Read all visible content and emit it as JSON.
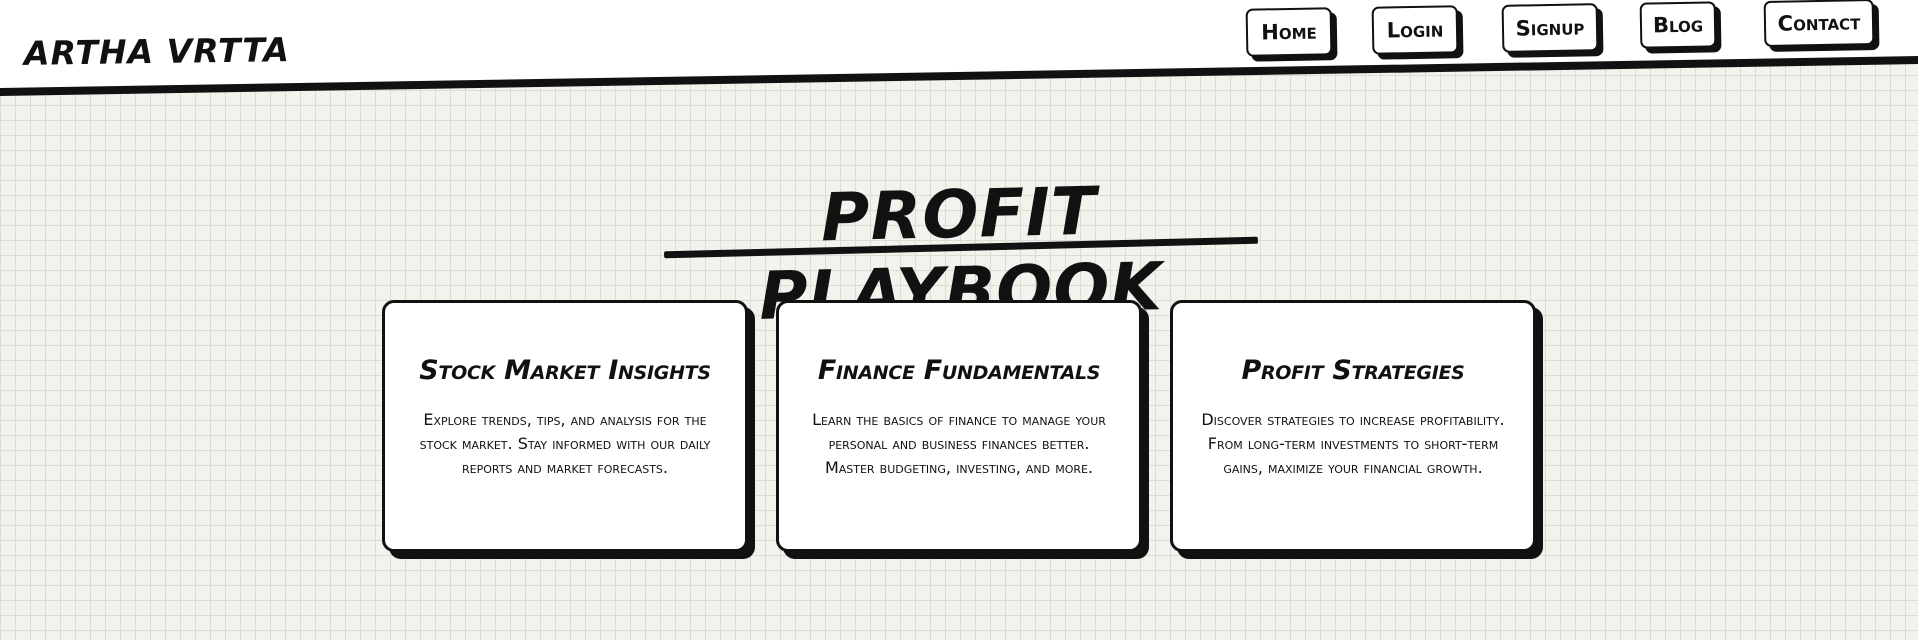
{
  "header": {
    "brand": "ARTHA VRTTA",
    "nav": [
      {
        "label": "Home"
      },
      {
        "label": "Login"
      },
      {
        "label": "Signup"
      },
      {
        "label": "Blog"
      },
      {
        "label": "Contact"
      }
    ]
  },
  "main": {
    "title": "PROFIT PLAYBOOK",
    "cards": [
      {
        "title": "Stock Market Insights",
        "text": "Explore trends, tips, and analysis for the stock market. Stay informed with our daily reports and market forecasts."
      },
      {
        "title": "Finance Fundamentals",
        "text": "Learn the basics of finance to manage your personal and business finances better. Master budgeting, investing, and more."
      },
      {
        "title": "Profit Strategies",
        "text": "Discover strategies to increase profitability. From long-term investments to short-term gains, maximize your financial growth."
      }
    ]
  },
  "colors": {
    "background": "#f3f2ec",
    "grid": "#dcdcd4",
    "ink": "#111111",
    "card": "#ffffff"
  }
}
